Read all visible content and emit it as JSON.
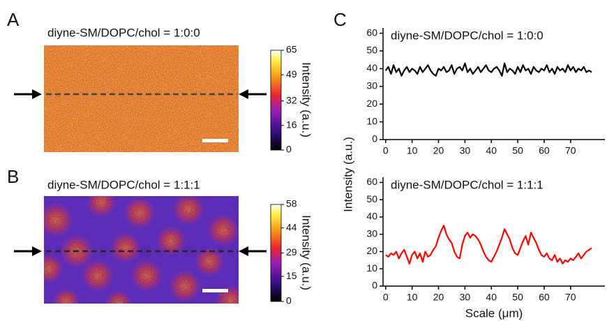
{
  "panels": [
    {
      "letter": "A",
      "title": "diyne-SM/DOPC/chol = 1:0:0",
      "colorbar": {
        "label": "Intensity (a.u.)",
        "ticks": [
          0,
          16,
          32,
          49,
          65
        ]
      }
    },
    {
      "letter": "B",
      "title": "diyne-SM/DOPC/chol = 1:1:1",
      "colorbar": {
        "label": "Intensity (a.u.)",
        "ticks": [
          0,
          15,
          29,
          44,
          58
        ]
      }
    }
  ],
  "panel_c": {
    "letter": "C",
    "y_label": "Intensity (a.u.)",
    "x_label": "Scale (μm)"
  },
  "chart_data": [
    {
      "type": "line",
      "title": "diyne-SM/DOPC/chol = 1:0:0",
      "color": "#000000",
      "x": [
        0,
        1,
        2,
        3,
        4,
        5,
        6,
        7,
        8,
        9,
        10,
        11,
        12,
        13,
        14,
        15,
        16,
        17,
        18,
        19,
        20,
        21,
        22,
        23,
        24,
        25,
        26,
        27,
        28,
        29,
        30,
        31,
        32,
        33,
        34,
        35,
        36,
        37,
        38,
        39,
        40,
        41,
        42,
        43,
        44,
        45,
        46,
        47,
        48,
        49,
        50,
        51,
        52,
        53,
        54,
        55,
        56,
        57,
        58,
        59,
        60,
        61,
        62,
        63,
        64,
        65,
        66,
        67,
        68,
        69,
        70,
        71,
        72,
        73,
        74,
        75,
        76,
        77,
        78
      ],
      "values": [
        39,
        41,
        37,
        42,
        38,
        40,
        36,
        39,
        41,
        38,
        40,
        39,
        37,
        41,
        38,
        40,
        42,
        39,
        37,
        36,
        40,
        39,
        41,
        38,
        39,
        42,
        37,
        40,
        41,
        39,
        43,
        38,
        40,
        37,
        39,
        41,
        38,
        40,
        42,
        39,
        38,
        40,
        41,
        39,
        36,
        43,
        38,
        40,
        39,
        37,
        41,
        38,
        42,
        39,
        40,
        37,
        41,
        39,
        38,
        40,
        39,
        42,
        38,
        40,
        37,
        41,
        39,
        40,
        38,
        42,
        39,
        41,
        38,
        40,
        39,
        41,
        38,
        39,
        38
      ],
      "xlim": [
        -1,
        83
      ],
      "ylim": [
        0,
        63
      ],
      "xticks": [
        0,
        10,
        20,
        30,
        40,
        50,
        60,
        70
      ],
      "yticks": [
        0,
        10,
        20,
        30,
        40,
        50,
        60
      ]
    },
    {
      "type": "line",
      "title": "diyne-SM/DOPC/chol = 1:1:1",
      "color": "#ff0000",
      "x": [
        0,
        1,
        2,
        3,
        4,
        5,
        6,
        7,
        8,
        9,
        10,
        11,
        12,
        13,
        14,
        15,
        16,
        17,
        18,
        19,
        20,
        21,
        22,
        23,
        24,
        25,
        26,
        27,
        28,
        29,
        30,
        31,
        32,
        33,
        34,
        35,
        36,
        37,
        38,
        39,
        40,
        41,
        42,
        43,
        44,
        45,
        46,
        47,
        48,
        49,
        50,
        51,
        52,
        53,
        54,
        55,
        56,
        57,
        58,
        59,
        60,
        61,
        62,
        63,
        64,
        65,
        66,
        67,
        68,
        69,
        70,
        71,
        72,
        73,
        74,
        75,
        76,
        77,
        78
      ],
      "values": [
        18,
        17,
        19,
        18,
        20,
        16,
        19,
        21,
        17,
        13,
        18,
        20,
        16,
        19,
        14,
        20,
        17,
        18,
        21,
        23,
        28,
        32,
        35,
        30,
        27,
        25,
        20,
        17,
        16,
        24,
        29,
        31,
        28,
        30,
        29,
        27,
        24,
        20,
        17,
        15,
        14,
        17,
        20,
        24,
        28,
        33,
        30,
        27,
        22,
        19,
        18,
        22,
        26,
        29,
        24,
        31,
        28,
        25,
        21,
        18,
        17,
        19,
        16,
        15,
        18,
        14,
        16,
        13,
        15,
        14,
        16,
        15,
        17,
        19,
        16,
        18,
        20,
        21,
        22
      ],
      "xlim": [
        -1,
        83
      ],
      "ylim": [
        0,
        63
      ],
      "xticks": [
        0,
        10,
        20,
        30,
        40,
        50,
        60,
        70
      ],
      "yticks": [
        0,
        10,
        20,
        30,
        40,
        50,
        60
      ]
    }
  ]
}
